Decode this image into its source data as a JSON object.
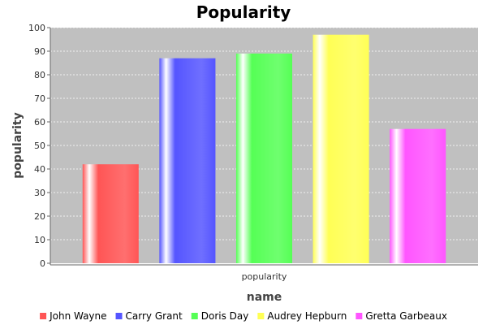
{
  "chart_data": {
    "type": "bar",
    "title": "Popularity",
    "xlabel": "name",
    "ylabel": "popularity",
    "categories": [
      "popularity"
    ],
    "series": [
      {
        "name": "John Wayne",
        "values": [
          42
        ],
        "color": "#ff5555"
      },
      {
        "name": "Carry Grant",
        "values": [
          87
        ],
        "color": "#5555ff"
      },
      {
        "name": "Doris Day",
        "values": [
          89
        ],
        "color": "#55ff55"
      },
      {
        "name": "Audrey Hepburn",
        "values": [
          97
        ],
        "color": "#ffff55"
      },
      {
        "name": "Gretta Garbeaux",
        "values": [
          57
        ],
        "color": "#ff55ff"
      }
    ],
    "ylim": [
      0,
      100
    ],
    "yticks": [
      0,
      10,
      20,
      30,
      40,
      50,
      60,
      70,
      80,
      90,
      100
    ],
    "grid": true,
    "legend_position": "bottom",
    "plot_background": "#c0c0c0",
    "grid_color": "#ffffff"
  }
}
